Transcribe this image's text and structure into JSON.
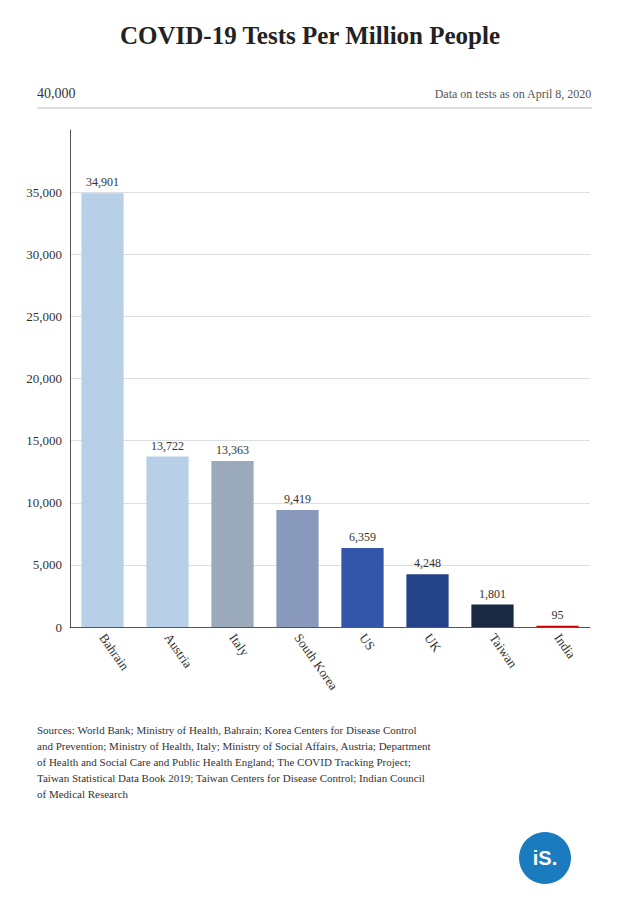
{
  "chart_data": {
    "type": "bar",
    "title": "COVID-19 Tests Per Million People",
    "subtitle": "Data on tests as on April 8, 2020",
    "annotations": [
      "40,000",
      "Sources: World Bank; Ministry of Health, Bahrain; Korea Centers for Disease Control\nand Prevention; Ministry of Health, Italy; Ministry of Social Affairs, Austria; Department\nof Health and Social Care and Public Health England; The COVID Tracking Project;\nTaiwan Statistical Data Book 2019; Taiwan Centers for Disease Control; Indian Council\nof Medical Research",
      "iS."
    ],
    "categories": [
      "Bahrain",
      "Austria",
      "Italy",
      "South Korea",
      "US",
      "UK",
      "Taiwan",
      "India"
    ],
    "values": [
      34901,
      13722,
      13363,
      9419,
      6359,
      4248,
      1801,
      95
    ],
    "value_labels": [
      "34,901",
      "13,722",
      "13,363",
      "9,419",
      "6,359",
      "4,248",
      "1,801",
      "95"
    ],
    "colors": [
      "#b8cfe8",
      "#b8cfe8",
      "#9aaabb",
      "#8899bb",
      "#3355aa",
      "#234488",
      "#1a2844",
      "#cc0000"
    ],
    "data_labels": true,
    "ylim": [
      0,
      40000
    ],
    "yticks": [
      0,
      {
        "value": 5000,
        "label": "5,000"
      },
      {
        "value": 10000,
        "label": "10,000"
      },
      {
        "value": 15000,
        "label": "15,000"
      },
      {
        "value": 20000,
        "label": "20,000"
      },
      {
        "value": 25000,
        "label": "25,000"
      },
      {
        "value": 30000,
        "label": "30,000"
      },
      {
        "value": 35000,
        "label": "35,000"
      }
    ],
    "grid": true
  }
}
